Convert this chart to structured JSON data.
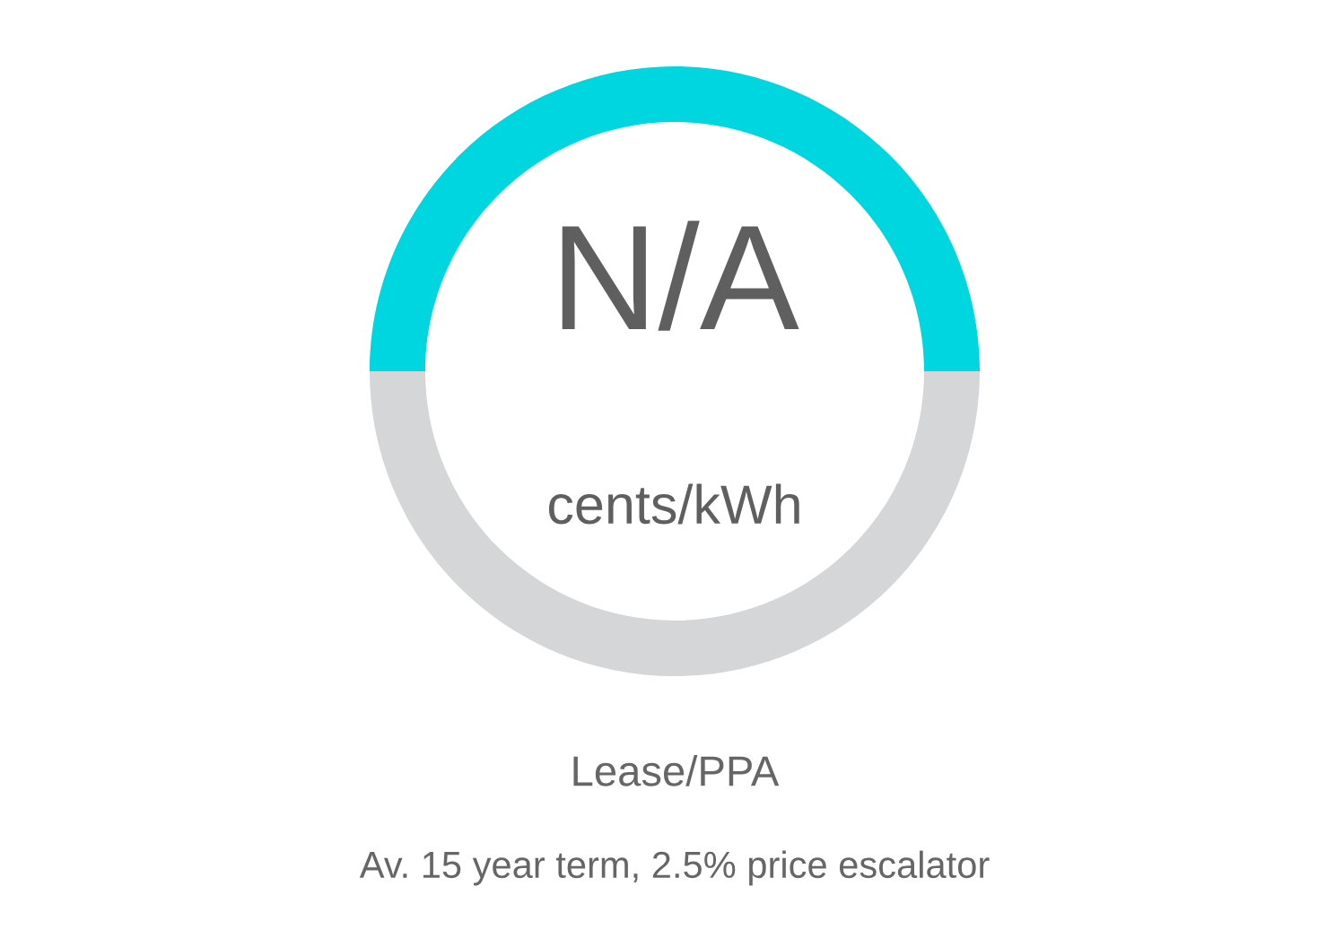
{
  "chart_data": {
    "type": "donut",
    "title": "Lease/PPA",
    "subtitle": "Av. 15 year term, 2.5% price escalator",
    "annotations": [
      "N/A",
      "cents/kWh"
    ],
    "categories": [
      null,
      null
    ],
    "values": [
      50,
      50
    ],
    "colors": [
      "#00d6e0",
      "#d5d6d8"
    ]
  }
}
